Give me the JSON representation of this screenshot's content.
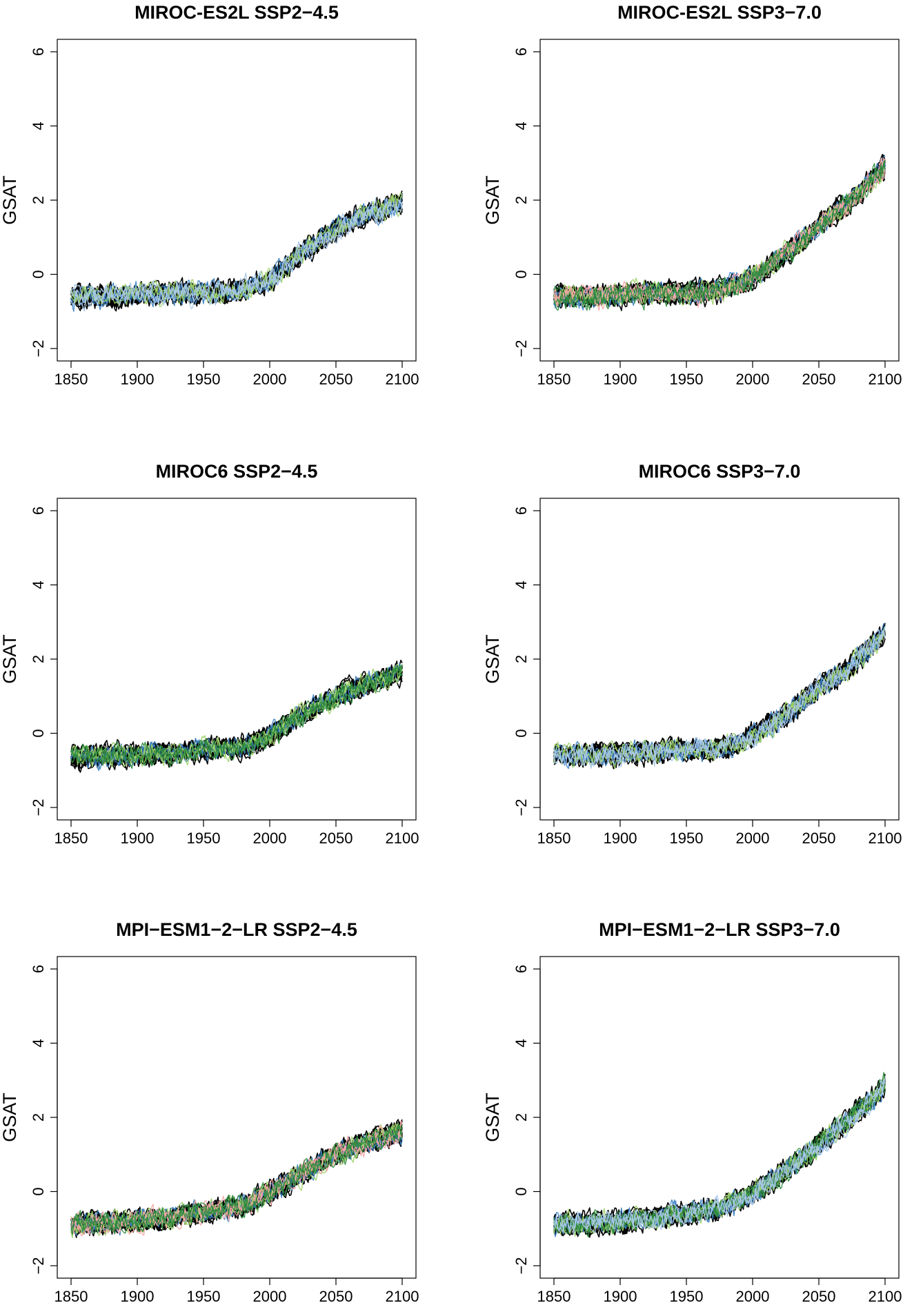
{
  "chart_data": [
    {
      "type": "line",
      "title": "MIROC-ES2L SSP2−4.5",
      "xlabel": "",
      "ylabel": "GSAT",
      "xlim": [
        1850,
        2100
      ],
      "ylim": [
        -2.3,
        6.3
      ],
      "xticks": [
        1850,
        1900,
        1950,
        2000,
        2050,
        2100
      ],
      "yticks": [
        -2,
        0,
        2,
        4,
        6
      ],
      "x": [
        1850,
        1875,
        1900,
        1925,
        1950,
        1975,
        2000,
        2025,
        2050,
        2075,
        2100
      ],
      "series": [
        {
          "color": "#000000",
          "values": [
            -0.6,
            -0.6,
            -0.55,
            -0.5,
            -0.5,
            -0.45,
            -0.15,
            0.6,
            1.2,
            1.65,
            1.95
          ]
        },
        {
          "color": "#3b82c4",
          "values": [
            -0.6,
            -0.6,
            -0.55,
            -0.5,
            -0.5,
            -0.45,
            -0.15,
            0.6,
            1.2,
            1.65,
            1.95
          ]
        },
        {
          "color": "#9fd36a",
          "values": [
            -0.6,
            -0.6,
            -0.55,
            -0.5,
            -0.5,
            -0.45,
            -0.15,
            0.6,
            1.2,
            1.65,
            1.95
          ]
        },
        {
          "color": "#a8c8ea",
          "values": [
            -0.6,
            -0.6,
            -0.55,
            -0.5,
            -0.5,
            -0.45,
            -0.15,
            0.6,
            1.2,
            1.65,
            1.95
          ]
        }
      ],
      "grid": false
    },
    {
      "type": "line",
      "title": "MIROC-ES2L SSP3−7.0",
      "xlabel": "",
      "ylabel": "GSAT",
      "xlim": [
        1850,
        2100
      ],
      "ylim": [
        -2.3,
        6.3
      ],
      "xticks": [
        1850,
        1900,
        1950,
        2000,
        2050,
        2100
      ],
      "yticks": [
        -2,
        0,
        2,
        4,
        6
      ],
      "x": [
        1850,
        1875,
        1900,
        1925,
        1950,
        1975,
        2000,
        2025,
        2050,
        2075,
        2100
      ],
      "series": [
        {
          "color": "#000000",
          "values": [
            -0.6,
            -0.6,
            -0.55,
            -0.5,
            -0.5,
            -0.45,
            -0.1,
            0.55,
            1.3,
            2.0,
            2.9
          ]
        },
        {
          "color": "#3b82c4",
          "values": [
            -0.6,
            -0.6,
            -0.55,
            -0.5,
            -0.5,
            -0.45,
            -0.1,
            0.55,
            1.3,
            2.0,
            2.9
          ]
        },
        {
          "color": "#9fd36a",
          "values": [
            -0.6,
            -0.6,
            -0.55,
            -0.5,
            -0.5,
            -0.45,
            -0.1,
            0.55,
            1.3,
            2.0,
            2.9
          ]
        },
        {
          "color": "#f4a6a6",
          "values": [
            -0.6,
            -0.6,
            -0.55,
            -0.5,
            -0.5,
            -0.45,
            -0.1,
            0.55,
            1.3,
            2.0,
            2.9
          ]
        },
        {
          "color": "#2e8b3e",
          "values": [
            -0.6,
            -0.6,
            -0.55,
            -0.5,
            -0.5,
            -0.45,
            -0.1,
            0.55,
            1.3,
            2.0,
            2.9
          ]
        }
      ],
      "grid": false
    },
    {
      "type": "line",
      "title": "MIROC6 SSP2−4.5",
      "xlabel": "",
      "ylabel": "GSAT",
      "xlim": [
        1850,
        2100
      ],
      "ylim": [
        -2.3,
        6.3
      ],
      "xticks": [
        1850,
        1900,
        1950,
        2000,
        2050,
        2100
      ],
      "yticks": [
        -2,
        0,
        2,
        4,
        6
      ],
      "x": [
        1850,
        1875,
        1900,
        1925,
        1950,
        1975,
        2000,
        2025,
        2050,
        2075,
        2100
      ],
      "series": [
        {
          "color": "#000000",
          "values": [
            -0.65,
            -0.6,
            -0.6,
            -0.55,
            -0.45,
            -0.4,
            -0.1,
            0.5,
            1.0,
            1.35,
            1.65
          ]
        },
        {
          "color": "#3b82c4",
          "values": [
            -0.65,
            -0.6,
            -0.6,
            -0.55,
            -0.45,
            -0.4,
            -0.1,
            0.5,
            1.0,
            1.35,
            1.65
          ]
        },
        {
          "color": "#9fd36a",
          "values": [
            -0.65,
            -0.6,
            -0.6,
            -0.55,
            -0.45,
            -0.4,
            -0.1,
            0.5,
            1.0,
            1.35,
            1.65
          ]
        },
        {
          "color": "#2e8b3e",
          "values": [
            -0.65,
            -0.6,
            -0.6,
            -0.55,
            -0.45,
            -0.4,
            -0.1,
            0.5,
            1.0,
            1.35,
            1.65
          ]
        }
      ],
      "grid": false
    },
    {
      "type": "line",
      "title": "MIROC6 SSP3−7.0",
      "xlabel": "",
      "ylabel": "GSAT",
      "xlim": [
        1850,
        2100
      ],
      "ylim": [
        -2.3,
        6.3
      ],
      "xticks": [
        1850,
        1900,
        1950,
        2000,
        2050,
        2100
      ],
      "yticks": [
        -2,
        0,
        2,
        4,
        6
      ],
      "x": [
        1850,
        1875,
        1900,
        1925,
        1950,
        1975,
        2000,
        2025,
        2050,
        2075,
        2100
      ],
      "series": [
        {
          "color": "#000000",
          "values": [
            -0.6,
            -0.6,
            -0.55,
            -0.5,
            -0.45,
            -0.45,
            -0.1,
            0.5,
            1.2,
            1.85,
            2.7
          ]
        },
        {
          "color": "#3b82c4",
          "values": [
            -0.6,
            -0.6,
            -0.55,
            -0.5,
            -0.45,
            -0.45,
            -0.1,
            0.5,
            1.2,
            1.85,
            2.7
          ]
        },
        {
          "color": "#9fd36a",
          "values": [
            -0.6,
            -0.6,
            -0.55,
            -0.5,
            -0.45,
            -0.45,
            -0.1,
            0.5,
            1.2,
            1.85,
            2.7
          ]
        },
        {
          "color": "#a8c8ea",
          "values": [
            -0.6,
            -0.6,
            -0.55,
            -0.5,
            -0.45,
            -0.45,
            -0.1,
            0.5,
            1.2,
            1.85,
            2.7
          ]
        }
      ],
      "grid": false
    },
    {
      "type": "line",
      "title": "MPI−ESM1−2−LR SSP2−4.5",
      "xlabel": "",
      "ylabel": "GSAT",
      "xlim": [
        1850,
        2100
      ],
      "ylim": [
        -2.3,
        6.3
      ],
      "xticks": [
        1850,
        1900,
        1950,
        2000,
        2050,
        2100
      ],
      "yticks": [
        -2,
        0,
        2,
        4,
        6
      ],
      "x": [
        1850,
        1875,
        1900,
        1925,
        1950,
        1975,
        2000,
        2025,
        2050,
        2075,
        2100
      ],
      "series": [
        {
          "color": "#000000",
          "values": [
            -0.9,
            -0.85,
            -0.8,
            -0.7,
            -0.55,
            -0.45,
            -0.05,
            0.5,
            1.0,
            1.35,
            1.6
          ]
        },
        {
          "color": "#3b82c4",
          "values": [
            -0.9,
            -0.85,
            -0.8,
            -0.7,
            -0.55,
            -0.45,
            -0.05,
            0.5,
            1.0,
            1.35,
            1.6
          ]
        },
        {
          "color": "#9fd36a",
          "values": [
            -0.9,
            -0.85,
            -0.8,
            -0.7,
            -0.55,
            -0.45,
            -0.05,
            0.5,
            1.0,
            1.35,
            1.6
          ]
        },
        {
          "color": "#f4a6a6",
          "values": [
            -0.9,
            -0.85,
            -0.8,
            -0.7,
            -0.55,
            -0.45,
            -0.05,
            0.5,
            1.0,
            1.35,
            1.6
          ]
        },
        {
          "color": "#2e8b3e",
          "values": [
            -0.9,
            -0.85,
            -0.8,
            -0.7,
            -0.55,
            -0.45,
            -0.05,
            0.5,
            1.0,
            1.35,
            1.6
          ]
        }
      ],
      "grid": false
    },
    {
      "type": "line",
      "title": "MPI−ESM1−2−LR SSP3−7.0",
      "xlabel": "",
      "ylabel": "GSAT",
      "xlim": [
        1850,
        2100
      ],
      "ylim": [
        -2.3,
        6.3
      ],
      "xticks": [
        1850,
        1900,
        1950,
        2000,
        2050,
        2100
      ],
      "yticks": [
        -2,
        0,
        2,
        4,
        6
      ],
      "x": [
        1850,
        1875,
        1900,
        1925,
        1950,
        1975,
        2000,
        2025,
        2050,
        2075,
        2100
      ],
      "series": [
        {
          "color": "#000000",
          "values": [
            -0.9,
            -0.85,
            -0.8,
            -0.7,
            -0.6,
            -0.45,
            -0.05,
            0.55,
            1.25,
            2.0,
            2.85
          ]
        },
        {
          "color": "#3b82c4",
          "values": [
            -0.9,
            -0.85,
            -0.8,
            -0.7,
            -0.6,
            -0.45,
            -0.05,
            0.55,
            1.25,
            2.0,
            2.85
          ]
        },
        {
          "color": "#9fd36a",
          "values": [
            -0.9,
            -0.85,
            -0.8,
            -0.7,
            -0.6,
            -0.45,
            -0.05,
            0.55,
            1.25,
            2.0,
            2.85
          ]
        },
        {
          "color": "#2e8b3e",
          "values": [
            -0.9,
            -0.85,
            -0.8,
            -0.7,
            -0.6,
            -0.45,
            -0.05,
            0.55,
            1.25,
            2.0,
            2.85
          ]
        },
        {
          "color": "#a8c8ea",
          "values": [
            -0.9,
            -0.85,
            -0.8,
            -0.7,
            -0.6,
            -0.45,
            -0.05,
            0.55,
            1.25,
            2.0,
            2.85
          ]
        }
      ],
      "grid": false
    }
  ]
}
